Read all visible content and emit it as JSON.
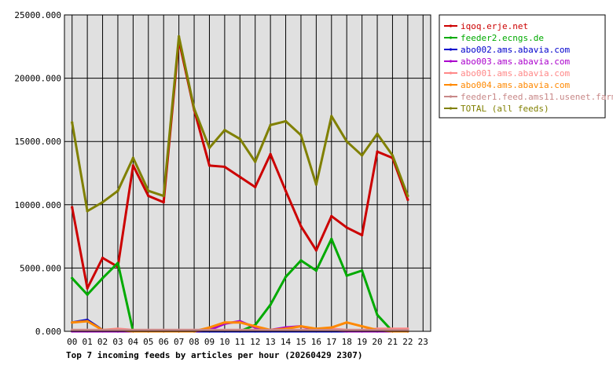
{
  "chart_data": {
    "type": "line",
    "title": "Top 7 incoming feeds by articles per hour (20260429 2307)",
    "xlabel": "",
    "ylabel": "",
    "categories": [
      "00",
      "01",
      "02",
      "03",
      "04",
      "05",
      "06",
      "07",
      "08",
      "09",
      "10",
      "11",
      "12",
      "13",
      "14",
      "15",
      "16",
      "17",
      "18",
      "19",
      "20",
      "21",
      "22",
      "23"
    ],
    "y_ticks": [
      "0.000",
      "5000.000",
      "10000.000",
      "15000.000",
      "20000.000",
      "25000.000"
    ],
    "ylim": [
      0,
      25000
    ],
    "grid": true,
    "legend_position": "top-right",
    "series": [
      {
        "name": "iqoq.erje.net",
        "color": "#cc0000",
        "values": [
          9800,
          3400,
          5800,
          5100,
          13100,
          10700,
          10200,
          23000,
          17500,
          13100,
          13000,
          12200,
          11400,
          14000,
          11100,
          8300,
          6400,
          9100,
          8200,
          7600,
          14200,
          13700,
          10400,
          null
        ]
      },
      {
        "name": "feeder2.ecngs.de",
        "color": "#00aa00",
        "values": [
          4200,
          2900,
          4200,
          5400,
          0,
          0,
          0,
          0,
          0,
          0,
          0,
          0,
          500,
          2100,
          4300,
          5600,
          4800,
          7300,
          4400,
          4800,
          1300,
          0,
          0,
          null
        ]
      },
      {
        "name": "abo002.ams.abavia.com",
        "color": "#0000cc",
        "values": [
          700,
          900,
          100,
          0,
          0,
          0,
          0,
          0,
          0,
          0,
          0,
          0,
          0,
          0,
          0,
          0,
          0,
          0,
          0,
          0,
          0,
          0,
          0,
          null
        ]
      },
      {
        "name": "abo003.ams.abavia.com",
        "color": "#aa00cc",
        "values": [
          0,
          0,
          0,
          0,
          0,
          0,
          0,
          0,
          0,
          100,
          600,
          800,
          300,
          100,
          300,
          400,
          100,
          100,
          0,
          0,
          0,
          0,
          0,
          null
        ]
      },
      {
        "name": "abo001.ams.abavia.com",
        "color": "#ff8888",
        "values": [
          100,
          100,
          100,
          200,
          100,
          100,
          100,
          100,
          100,
          100,
          100,
          100,
          100,
          100,
          100,
          100,
          100,
          200,
          100,
          100,
          200,
          200,
          200,
          null
        ]
      },
      {
        "name": "abo004.ams.abavia.com",
        "color": "#ff8800",
        "values": [
          700,
          800,
          100,
          100,
          0,
          0,
          0,
          0,
          0,
          300,
          700,
          700,
          400,
          100,
          200,
          400,
          200,
          300,
          700,
          400,
          100,
          0,
          0,
          null
        ]
      },
      {
        "name": "feeder1.feed.ams11.usenet.farm",
        "color": "#c88888",
        "values": [
          100,
          100,
          100,
          100,
          100,
          100,
          100,
          100,
          100,
          100,
          100,
          100,
          100,
          100,
          100,
          100,
          100,
          100,
          100,
          100,
          100,
          100,
          100,
          null
        ]
      },
      {
        "name": "TOTAL (all feeds)",
        "color": "#808000",
        "values": [
          16500,
          9500,
          10200,
          11100,
          13700,
          11100,
          10700,
          23300,
          17600,
          14500,
          15900,
          15200,
          13400,
          16300,
          16600,
          15500,
          11600,
          17000,
          15000,
          13900,
          15600,
          13900,
          10700,
          null
        ]
      }
    ]
  }
}
